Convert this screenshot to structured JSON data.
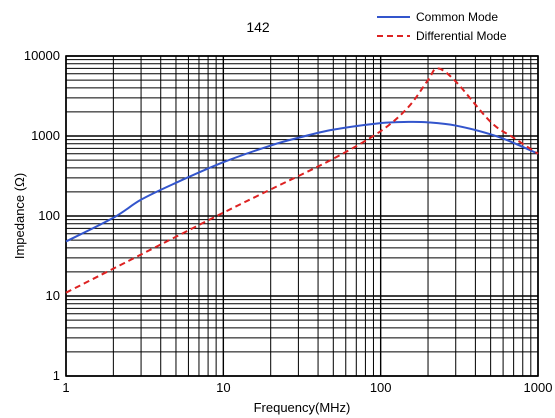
{
  "chart_data": {
    "type": "line",
    "title": "142",
    "xlabel": "Frequency(MHz)",
    "ylabel": "Impedance (Ω)",
    "xscale": "log",
    "yscale": "log",
    "xlim": [
      1,
      1000
    ],
    "ylim": [
      1,
      10000
    ],
    "xticks": [
      "1",
      "10",
      "100",
      "1000"
    ],
    "yticks": [
      "1",
      "10",
      "100",
      "1000",
      "10000"
    ],
    "grid": true,
    "legend_position": "top-right",
    "series": [
      {
        "name": "Common Mode",
        "color": "#3355cc",
        "style": "solid",
        "x": [
          1,
          2,
          3,
          5,
          10,
          20,
          30,
          50,
          100,
          150,
          200,
          300,
          500,
          700,
          1000
        ],
        "y": [
          48,
          95,
          160,
          260,
          470,
          760,
          950,
          1200,
          1450,
          1500,
          1480,
          1350,
          1050,
          820,
          600
        ]
      },
      {
        "name": "Differential Mode",
        "color": "#dd2222",
        "style": "dashed",
        "x": [
          1,
          2,
          3,
          5,
          10,
          20,
          50,
          100,
          150,
          200,
          230,
          300,
          500,
          700,
          1000
        ],
        "y": [
          11,
          22,
          33,
          55,
          110,
          215,
          520,
          1150,
          2300,
          5000,
          7000,
          4800,
          1500,
          950,
          600
        ]
      }
    ]
  }
}
